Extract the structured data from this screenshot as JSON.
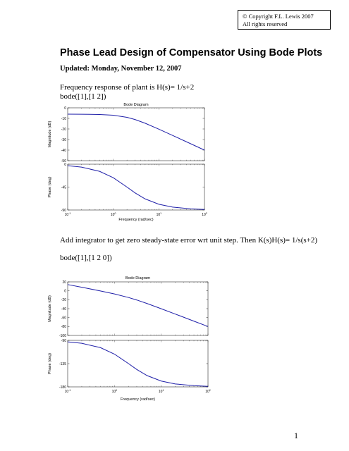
{
  "copyright": [
    "© Copyright F.L. Lewis 2007",
    "All rights reserved"
  ],
  "title": "Phase Lead Design of Compensator Using Bode Plots",
  "updated": "Updated:  Monday, November 12, 2007",
  "para1": [
    "Frequency response of plant is H(s)= 1/s+2",
    "bode([1],[1 2])"
  ],
  "para2": "Add integrator to get zero steady-state error wrt unit step.  Then K(s)H(s)= 1/s(s+2)",
  "para3": "bode([1],[1 2 0])",
  "page_number": "1",
  "chart_data": [
    {
      "type": "line",
      "title": "Bode Diagram",
      "xlabel": "Frequency  (rad/sec)",
      "x_scale": "log",
      "xlim": [
        0.1,
        100
      ],
      "x_tick_labels": [
        "10-1",
        "100",
        "101",
        "102"
      ],
      "color": "#1e1ea8",
      "panels": [
        {
          "ylabel": "Magnitude (dB)",
          "ylim": [
            -50,
            0
          ],
          "y_ticks": [
            0,
            -10,
            -20,
            -30,
            -40,
            -50
          ],
          "x": [
            0.1,
            0.2,
            0.5,
            1,
            2,
            3,
            5,
            10,
            20,
            50,
            100
          ],
          "y": [
            -6.03,
            -6.06,
            -6.29,
            -6.99,
            -9.03,
            -11.1,
            -14.6,
            -20.2,
            -26.1,
            -34.0,
            -40.0
          ]
        },
        {
          "ylabel": "Phase (deg)",
          "ylim": [
            -90,
            0
          ],
          "y_ticks": [
            0,
            -45,
            -90
          ],
          "x": [
            0.1,
            0.2,
            0.5,
            1,
            2,
            3,
            5,
            10,
            20,
            50,
            100
          ],
          "y": [
            -2.9,
            -5.7,
            -14.0,
            -26.6,
            -45.0,
            -56.3,
            -68.2,
            -78.7,
            -84.3,
            -87.7,
            -88.9
          ]
        }
      ]
    },
    {
      "type": "line",
      "title": "Bode Diagram",
      "xlabel": "Frequency  (rad/sec)",
      "x_scale": "log",
      "xlim": [
        0.1,
        100
      ],
      "x_tick_labels": [
        "10-1",
        "100",
        "101",
        "102"
      ],
      "color": "#1e1ea8",
      "panels": [
        {
          "ylabel": "Magnitude (dB)",
          "ylim": [
            -100,
            20
          ],
          "y_ticks": [
            20,
            0,
            -20,
            -40,
            -60,
            -80,
            -100
          ],
          "x": [
            0.1,
            0.2,
            0.5,
            1,
            2,
            3,
            5,
            10,
            20,
            50,
            100
          ],
          "y": [
            13.97,
            7.92,
            -0.27,
            -6.99,
            -15.05,
            -20.6,
            -28.6,
            -40.2,
            -52.1,
            -68.0,
            -80.0
          ]
        },
        {
          "ylabel": "Phase (deg)",
          "ylim": [
            -180,
            -90
          ],
          "y_ticks": [
            -90,
            -135,
            -180
          ],
          "x": [
            0.1,
            0.2,
            0.5,
            1,
            2,
            3,
            5,
            10,
            20,
            50,
            100
          ],
          "y": [
            -92.9,
            -95.7,
            -104.0,
            -116.6,
            -135.0,
            -146.3,
            -158.2,
            -168.7,
            -174.3,
            -177.7,
            -178.9
          ]
        }
      ]
    }
  ]
}
